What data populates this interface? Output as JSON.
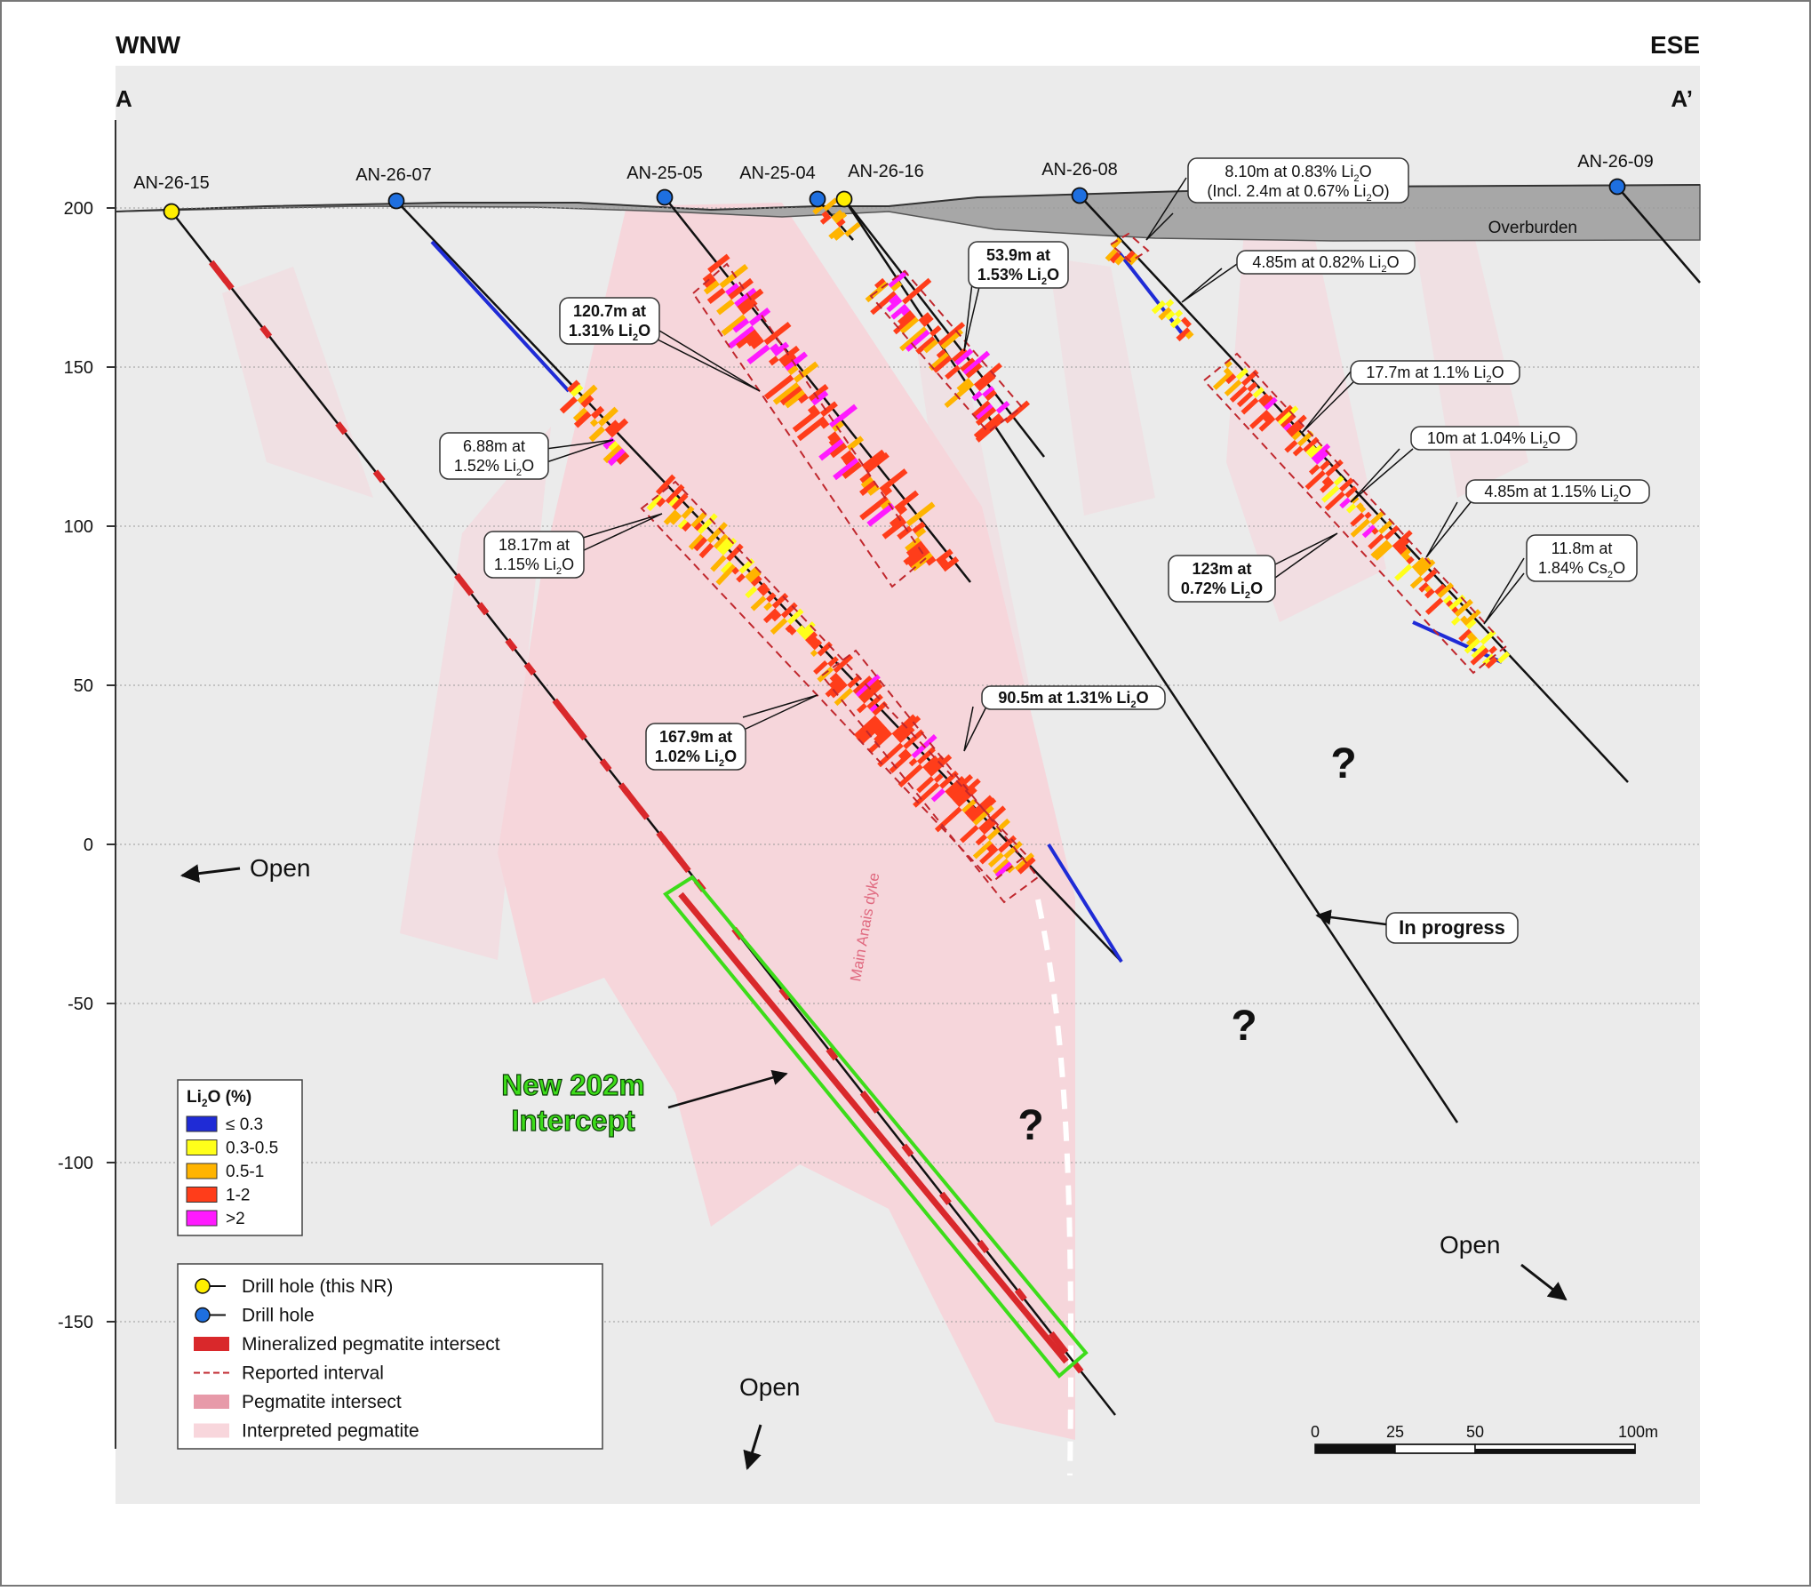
{
  "section": {
    "left_direction": "WNW",
    "right_direction": "ESE",
    "left_point": "A",
    "right_point": "A’"
  },
  "axis": {
    "ticks": [
      "200",
      "150",
      "100",
      "50",
      "0",
      "-50",
      "-100",
      "-150"
    ],
    "tick_values": [
      200,
      150,
      100,
      50,
      0,
      -50,
      -100,
      -150
    ],
    "ylim": [
      -190,
      225
    ]
  },
  "overburden_label": "Overburden",
  "dyke_label": "Main Anais dyke",
  "holes": [
    {
      "name": "AN-26-15",
      "type": "this_nr"
    },
    {
      "name": "AN-26-07",
      "type": "drill"
    },
    {
      "name": "AN-25-05",
      "type": "drill"
    },
    {
      "name": "AN-25-04",
      "type": "drill"
    },
    {
      "name": "AN-26-16",
      "type": "this_nr"
    },
    {
      "name": "AN-26-08",
      "type": "drill"
    },
    {
      "name": "AN-26-09",
      "type": "drill"
    }
  ],
  "callouts": [
    {
      "line1": "8.10m at 0.83% Li",
      "sub1": "2",
      "tail1": "O",
      "line2": "(Incl. 2.4m at 0.67% Li",
      "sub2": "2",
      "tail2": "O)",
      "bold": false
    },
    {
      "line1": "4.85m at 0.82% Li",
      "sub1": "2",
      "tail1": "O",
      "bold": false
    },
    {
      "line1": "53.9m at",
      "line2": "1.53% Li",
      "sub2": "2",
      "tail2": "O",
      "bold": true
    },
    {
      "line1": "120.7m at",
      "line2": "1.31% Li",
      "sub2": "2",
      "tail2": "O",
      "bold": true
    },
    {
      "line1": "17.7m at 1.1% Li",
      "sub1": "2",
      "tail1": "O",
      "bold": false
    },
    {
      "line1": "6.88m at",
      "line2": "1.52% Li",
      "sub2": "2",
      "tail2": "O",
      "bold": false
    },
    {
      "line1": "10m at 1.04% Li",
      "sub1": "2",
      "tail1": "O",
      "bold": false
    },
    {
      "line1": "4.85m at 1.15% Li",
      "sub1": "2",
      "tail1": "O",
      "bold": false
    },
    {
      "line1": "18.17m at",
      "line2": "1.15% Li",
      "sub2": "2",
      "tail2": "O",
      "bold": false
    },
    {
      "line1": "11.8m at",
      "line2": "1.84% Cs",
      "sub2": "2",
      "tail2": "O",
      "bold": false
    },
    {
      "line1": "123m at",
      "line2": "0.72% Li",
      "sub2": "2",
      "tail2": "O",
      "bold": true
    },
    {
      "line1": "90.5m at 1.31% Li",
      "sub1": "2",
      "tail1": "O",
      "bold": true
    },
    {
      "line1": "167.9m at",
      "line2": "1.02% Li",
      "sub2": "2",
      "tail2": "O",
      "bold": true
    },
    {
      "line1": "In progress",
      "bold": true
    }
  ],
  "open_labels": [
    "Open",
    "Open",
    "Open"
  ],
  "question_mark": "?",
  "new_intercept": {
    "line1": "New 202m",
    "line2": "Intercept"
  },
  "grade_legend": {
    "title_pre": "Li",
    "title_sub": "2",
    "title_post": "O (%)",
    "items": [
      {
        "label": "≤ 0.3",
        "color": "#1f2bd6"
      },
      {
        "label": "0.3-0.5",
        "color": "#ffff1a"
      },
      {
        "label": "0.5-1",
        "color": "#ffb400"
      },
      {
        "label": "1-2",
        "color": "#ff3d1a"
      },
      {
        "label": ">2",
        "color": "#ff1aff"
      }
    ]
  },
  "symbol_legend": [
    {
      "label": "Drill hole (this NR)",
      "kind": "this_nr"
    },
    {
      "label": "Drill hole",
      "kind": "drill"
    },
    {
      "label": "Mineralized pegmatite intersect",
      "kind": "mineralized"
    },
    {
      "label": "Reported interval",
      "kind": "reported"
    },
    {
      "label": "Pegmatite intersect",
      "kind": "pegmatite"
    },
    {
      "label": "Interpreted pegmatite",
      "kind": "interpreted"
    }
  ],
  "scale_bar": {
    "labels": [
      "0",
      "25",
      "50",
      "100m"
    ]
  },
  "colors": {
    "this_nr": "#ffee00",
    "drill": "#1e6fe0",
    "mineralized": "#d9282b",
    "reported": "#c0272d",
    "pegmatite": "#e79aa9",
    "interpreted": "#f8d6dc",
    "new_box": "#3ddc1a"
  }
}
